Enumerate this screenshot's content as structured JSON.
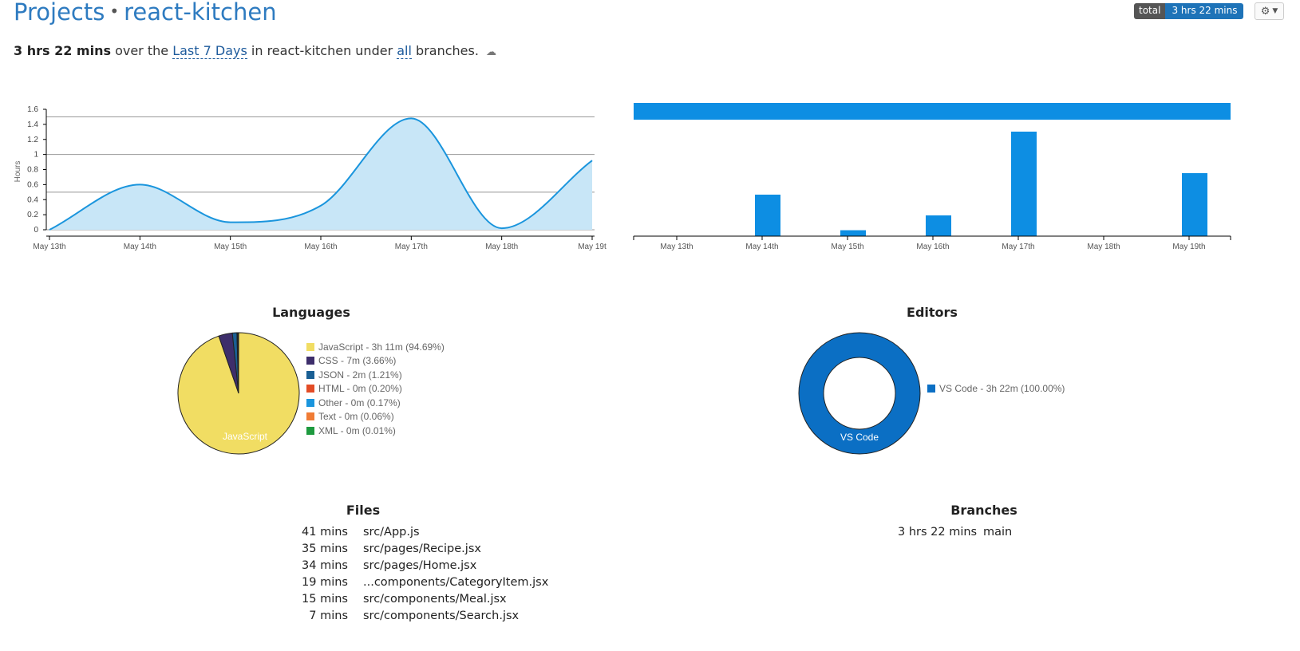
{
  "header": {
    "projects_link": "Projects",
    "separator": "•",
    "project_name": "react-kitchen",
    "total_label": "total",
    "total_value": "3 hrs 22 mins",
    "settings_icon": "gear-icon"
  },
  "summary": {
    "total": "3 hrs 22 mins",
    "over_the": "over the",
    "range_link": "Last 7 Days",
    "in_project": "in react-kitchen under",
    "branches_link": "all",
    "branches_suffix": "branches.",
    "cloud_icon": "cloud-download-icon"
  },
  "chart_data": [
    {
      "type": "area",
      "title": "",
      "xlabel": "",
      "ylabel": "Hours",
      "categories": [
        "May 13th",
        "May 14th",
        "May 15th",
        "May 16th",
        "May 17th",
        "May 18th",
        "May 19t"
      ],
      "values": [
        0,
        0.6,
        0.1,
        0.32,
        1.48,
        0.02,
        0.92
      ],
      "ylim": [
        0,
        1.6
      ],
      "yticks": [
        "0",
        "0.2",
        "0.4",
        "0.6",
        "0.8",
        "1",
        "1.2",
        "1.4",
        "1.6"
      ],
      "color": "#1a95dd",
      "fill": "#c8e6f7",
      "grid": true
    },
    {
      "type": "bar",
      "title": "",
      "categories": [
        "May 13th",
        "May 14th",
        "May 15th",
        "May 16th",
        "May 17th",
        "May 18th",
        "May 19th"
      ],
      "values": [
        0,
        0.56,
        0.08,
        0.28,
        1.41,
        0,
        0.85
      ],
      "ylim": [
        0,
        1.41
      ],
      "color": "#0d8ee3"
    },
    {
      "type": "pie",
      "title": "Languages",
      "slice_label": "JavaScript",
      "slices": [
        {
          "name": "JavaScript",
          "value": 94.69,
          "label": "JavaScript - 3h 11m (94.69%)",
          "color": "#f1dd63"
        },
        {
          "name": "CSS",
          "value": 3.66,
          "label": "CSS - 7m (3.66%)",
          "color": "#3d2e6b"
        },
        {
          "name": "JSON",
          "value": 1.21,
          "label": "JSON - 2m (1.21%)",
          "color": "#1a5f94"
        },
        {
          "name": "HTML",
          "value": 0.2,
          "label": "HTML - 0m (0.20%)",
          "color": "#e34c26"
        },
        {
          "name": "Other",
          "value": 0.17,
          "label": "Other - 0m (0.17%)",
          "color": "#1a95dd"
        },
        {
          "name": "Text",
          "value": 0.06,
          "label": "Text - 0m (0.06%)",
          "color": "#f07c35"
        },
        {
          "name": "XML",
          "value": 0.01,
          "label": "XML - 0m (0.01%)",
          "color": "#1e9a3f"
        }
      ]
    },
    {
      "type": "pie",
      "title": "Editors",
      "slice_label": "VS Code",
      "donut": true,
      "slices": [
        {
          "name": "VS Code",
          "value": 100.0,
          "label": "VS Code - 3h 22m (100.00%)",
          "color": "#0b6fc4"
        }
      ]
    }
  ],
  "files": {
    "title": "Files",
    "rows": [
      {
        "time": "41 mins",
        "name": "src/App.js"
      },
      {
        "time": "35 mins",
        "name": "src/pages/Recipe.jsx"
      },
      {
        "time": "34 mins",
        "name": "src/pages/Home.jsx"
      },
      {
        "time": "19 mins",
        "name": "...components/CategoryItem.jsx"
      },
      {
        "time": "15 mins",
        "name": "src/components/Meal.jsx"
      },
      {
        "time": "7 mins",
        "name": "src/components/Search.jsx"
      }
    ]
  },
  "branches": {
    "title": "Branches",
    "rows": [
      {
        "time": "3 hrs 22 mins",
        "name": "main"
      }
    ]
  }
}
